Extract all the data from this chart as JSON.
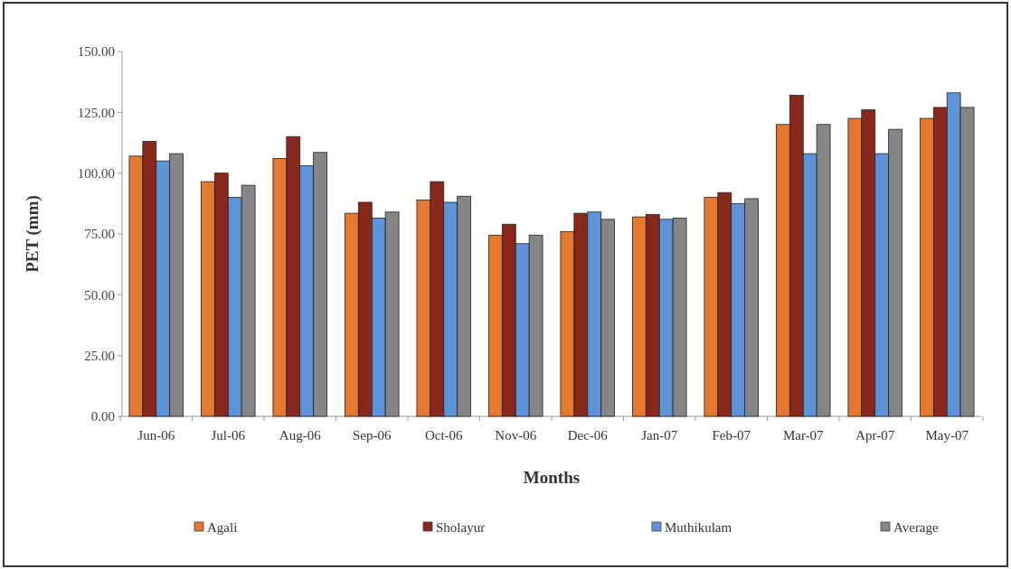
{
  "chart_data": {
    "type": "bar",
    "xlabel": "Months",
    "ylabel": "PET (mm)",
    "categories": [
      "Jun-06",
      "Jul-06",
      "Aug-06",
      "Sep-06",
      "Oct-06",
      "Nov-06",
      "Dec-06",
      "Jan-07",
      "Feb-07",
      "Mar-07",
      "Apr-07",
      "May-07"
    ],
    "series": [
      {
        "name": "Agali",
        "color": "#e3782e",
        "values": [
          107,
          96.5,
          106,
          83.5,
          89,
          74.5,
          76,
          82,
          90,
          120,
          122.5,
          122.5
        ]
      },
      {
        "name": "Sholayur",
        "color": "#87281a",
        "values": [
          113,
          100,
          115,
          88,
          96.5,
          79,
          83.5,
          83,
          92,
          132,
          126,
          127
        ]
      },
      {
        "name": "Muthikulam",
        "color": "#5f93d8",
        "values": [
          105,
          90,
          103,
          81.5,
          88,
          71,
          84,
          81,
          87.5,
          108,
          108,
          133
        ]
      },
      {
        "name": "Average",
        "color": "#858689",
        "values": [
          108,
          95,
          108.5,
          84,
          90.5,
          74.5,
          81,
          81.5,
          89.5,
          120,
          118,
          127
        ]
      }
    ],
    "ylim": [
      0,
      150
    ],
    "yticks": [
      {
        "value": 0,
        "label": "0.00"
      },
      {
        "value": 25,
        "label": "25.00"
      },
      {
        "value": 50,
        "label": "50.00"
      },
      {
        "value": 75,
        "label": "75.00"
      },
      {
        "value": 100,
        "label": "100.00"
      },
      {
        "value": 125,
        "label": "125.00"
      },
      {
        "value": 150,
        "label": "150.00"
      }
    ],
    "grid": false,
    "legend": "bottom"
  }
}
